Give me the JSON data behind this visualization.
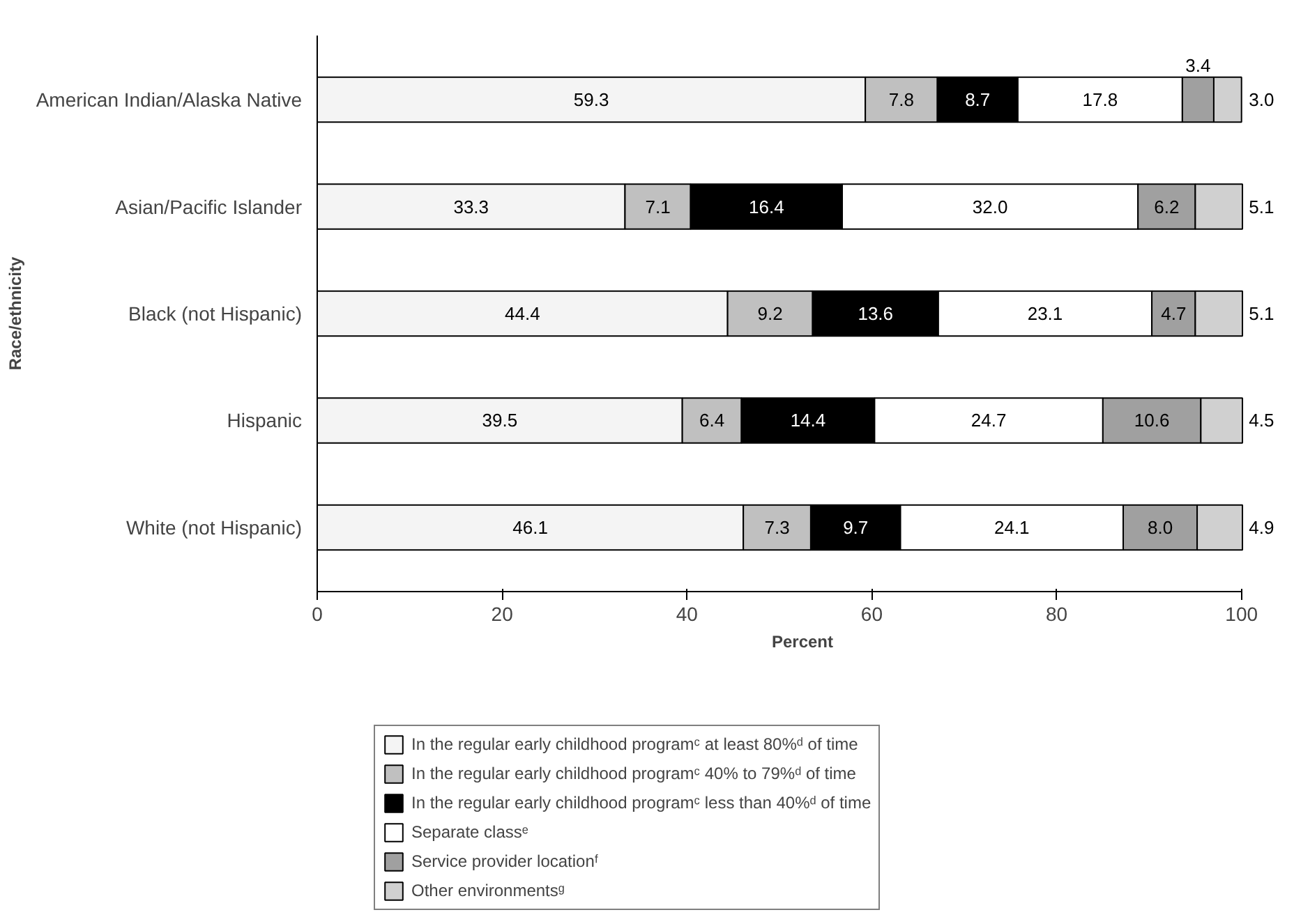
{
  "chart_data": {
    "type": "bar",
    "orientation": "horizontal",
    "stacked": true,
    "categories": [
      "American Indian/Alaska Native",
      "Asian/Pacific Islander",
      "Black (not Hispanic)",
      "Hispanic",
      "White (not Hispanic)"
    ],
    "series": [
      {
        "name": "In the regular early childhood programᶜ at least 80%ᵈ of time",
        "color": "#f4f4f4",
        "values": [
          59.3,
          33.3,
          44.4,
          39.5,
          46.1
        ],
        "value_labels": [
          "59.3",
          "33.3",
          "44.4",
          "39.5",
          "46.1"
        ]
      },
      {
        "name": "In the regular early childhood programᶜ 40% to 79%ᵈ of time",
        "color": "#c0c0c0",
        "values": [
          7.8,
          7.1,
          9.2,
          6.4,
          7.3
        ],
        "value_labels": [
          "7.8",
          "7.1",
          "9.2",
          "6.4",
          "7.3"
        ]
      },
      {
        "name": "In the regular early childhood programᶜ less than 40%ᵈ of time",
        "color": "#000000",
        "values": [
          8.7,
          16.4,
          13.6,
          14.4,
          9.7
        ],
        "value_labels": [
          "8.7",
          "16.4",
          "13.6",
          "14.4",
          "9.7"
        ]
      },
      {
        "name": "Separate classᵉ",
        "color": "#ffffff",
        "values": [
          17.8,
          32.0,
          23.1,
          24.7,
          24.1
        ],
        "value_labels": [
          "17.8",
          "32.0",
          "23.1",
          "24.7",
          "24.1"
        ]
      },
      {
        "name": "Service provider locationᶠ",
        "color": "#a0a0a0",
        "values": [
          3.4,
          6.2,
          4.7,
          10.6,
          8.0
        ],
        "value_labels": [
          "3.4",
          "6.2",
          "4.7",
          "10.6",
          "8.0"
        ]
      },
      {
        "name": "Other environmentsᵍ",
        "color": "#d0d0d0",
        "values": [
          3.0,
          5.1,
          5.1,
          4.5,
          4.9
        ],
        "value_labels": [
          "3.0",
          "5.1",
          "5.1",
          "4.5",
          "4.9"
        ]
      }
    ],
    "xlabel": "Percent",
    "ylabel": "Race/ethnicity",
    "xlim": [
      0,
      100
    ],
    "xticks": [
      0,
      20,
      40,
      60,
      80,
      100
    ],
    "grid": false,
    "legend": "bottom"
  }
}
